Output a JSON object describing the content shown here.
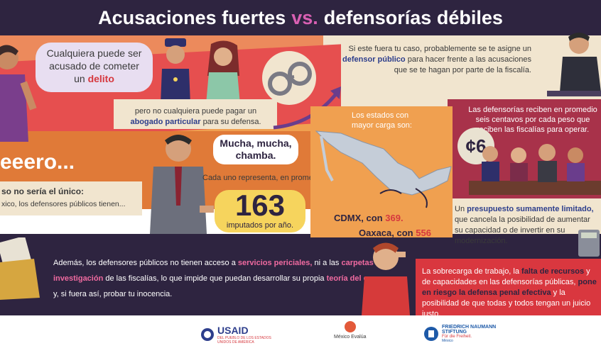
{
  "title": {
    "part1": "Acusaciones fuertes",
    "vs": "vs.",
    "part2": "defensorías débiles"
  },
  "bubble1": {
    "pre": "Cualquiera puede ser acusado de cometer un",
    "highlight": "delito"
  },
  "panel_abogado": {
    "pre": "pero no cualquiera puede pagar un",
    "highlight": "abogado particular",
    "post": "para su defensa."
  },
  "panel_defensor": {
    "pre": "Si este fuera tu caso, probablemente se te asigne un",
    "highlight": "defensor público",
    "post": "para hacer frente a las acusaciones que se te hagan por parte de la fiscalía."
  },
  "peeero": "eeero...",
  "no_unico": {
    "bold": "so no sería el único:",
    "rest": "xico, los defensores públicos tienen..."
  },
  "bubble2": "Mucha, mucha, chamba.",
  "cada_uno": "Cada uno representa, en promedio",
  "stat163": {
    "number": "163",
    "label": "imputados por año."
  },
  "estados": "Los estados con mayor carga son:",
  "cdmx": {
    "label": "CDMX, con",
    "value": "369."
  },
  "oaxaca": {
    "label": "Oaxaca, con",
    "value": "556"
  },
  "defensorias_reciben": "Las defensorías reciben en promedio seis centavos por cada peso que reciben las fiscalías para operar.",
  "coin": "¢6",
  "presupuesto": {
    "pre": "Un",
    "highlight": "presupuesto sumamente limitado,",
    "post": "que cancela la posibilidad de aumentar su capacidad o de invertir en su modernización."
  },
  "ademas": {
    "p1": "Además, los defensores públicos no tienen acceso a",
    "h1": "servicios periciales,",
    "p2": "ni a las",
    "h2": "carpetas de investigación",
    "p3": "de las fiscalías, lo que impide que puedan desarrollar su propia",
    "h3": "teoría del caso",
    "p4": "y, si fuera así, probar tu inocencia."
  },
  "sobrecarga": {
    "p1": "La sobrecarga de trabajo, la",
    "h1": "falta de recursos",
    "p2": "y de capacidades en las defensorías públicas,",
    "h2": "pone en riesgo la defensa penal efectiva",
    "p3": "y la posibilidad de que todas y todos tengan un juicio justo."
  },
  "logos": {
    "usaid": "USAID",
    "usaid_sub": "DEL PUEBLO DE LOS ESTADOS UNIDOS DE AMÉRICA",
    "mexico_evalua": "México Evalúa",
    "fnf": "FRIEDRICH NAUMANN STIFTUNG",
    "fnf_sub": "Für die Freiheit.",
    "fnf_country": "México"
  },
  "colors": {
    "title_bg": "#2e2440",
    "accent_pink": "#d960b3",
    "red": "#e64f4f",
    "orange": "#f0a050",
    "yellow": "#f6d45d"
  }
}
